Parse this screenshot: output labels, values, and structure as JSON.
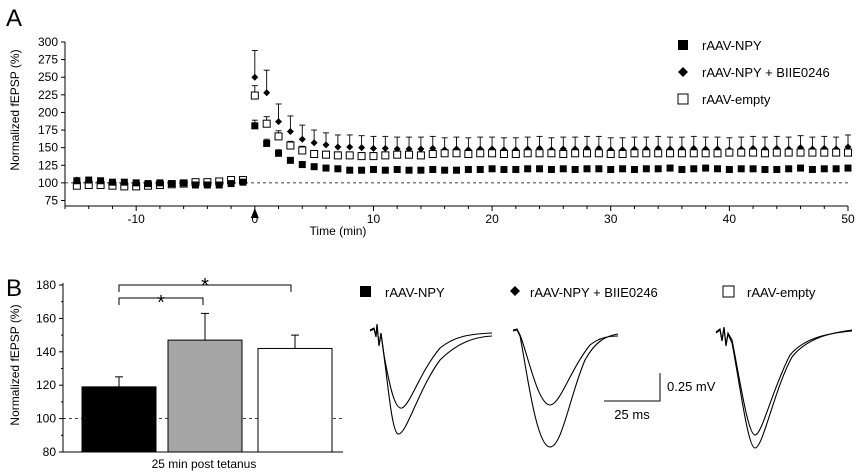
{
  "panel_a_letter": "A",
  "panel_b_letter": "B",
  "chart_data": [
    {
      "type": "scatter",
      "panel": "A",
      "xlabel": "Time (min)",
      "ylabel": "Normalized fEPSP (%)",
      "xlim": [
        -16,
        50
      ],
      "ylim": [
        70,
        300
      ],
      "x_ticks": [
        "-10",
        "0",
        "10",
        "20",
        "30",
        "40",
        "50"
      ],
      "y_ticks": [
        "75",
        "100",
        "125",
        "150",
        "175",
        "200",
        "225",
        "250",
        "275",
        "300"
      ],
      "baseline": 100,
      "tetanus_time": 0,
      "legend": [
        "rAAV-NPY",
        "rAAV-NPY + BIIE0246",
        "rAAV-empty"
      ],
      "series": [
        {
          "name": "rAAV-NPY",
          "marker": "filled-square",
          "x": [
            -15,
            -14,
            -13,
            -12,
            -11,
            -10,
            -9,
            -8,
            -7,
            -6,
            -5,
            -4,
            -3,
            -2,
            -1,
            0,
            1,
            2,
            3,
            4,
            5,
            6,
            7,
            8,
            9,
            10,
            11,
            12,
            13,
            14,
            15,
            16,
            17,
            18,
            19,
            20,
            21,
            22,
            23,
            24,
            25,
            26,
            27,
            28,
            29,
            30,
            31,
            32,
            33,
            34,
            35,
            36,
            37,
            38,
            39,
            40,
            41,
            42,
            43,
            44,
            45,
            46,
            47,
            48,
            49,
            50
          ],
          "values": [
            103,
            104,
            103,
            101,
            101,
            100,
            99,
            100,
            99,
            100,
            97,
            97,
            97,
            99,
            101,
            181,
            156,
            142,
            132,
            126,
            123,
            121,
            120,
            118,
            118,
            119,
            118,
            119,
            118,
            118,
            119,
            118,
            118,
            119,
            119,
            120,
            119,
            119,
            120,
            120,
            119,
            120,
            119,
            120,
            120,
            119,
            120,
            119,
            120,
            120,
            121,
            119,
            120,
            121,
            120,
            119,
            120,
            120,
            119,
            119,
            120,
            121,
            119,
            120,
            120,
            121
          ],
          "err": [
            3,
            3,
            3,
            2,
            2,
            2,
            2,
            2,
            2,
            2,
            2,
            2,
            2,
            2,
            2,
            8,
            6,
            5,
            4,
            4,
            3,
            3,
            3,
            3,
            3,
            3,
            3,
            3,
            3,
            3,
            3,
            3,
            3,
            3,
            3,
            3,
            3,
            3,
            3,
            3,
            3,
            3,
            3,
            3,
            3,
            3,
            3,
            3,
            3,
            3,
            3,
            3,
            3,
            3,
            3,
            3,
            3,
            3,
            3,
            3,
            3,
            3,
            3,
            3,
            3,
            3
          ]
        },
        {
          "name": "rAAV-NPY + BIIE0246",
          "marker": "diamond",
          "x": [
            -15,
            -14,
            -13,
            -12,
            -11,
            -10,
            -9,
            -8,
            -7,
            -6,
            -5,
            -4,
            -3,
            -2,
            -1,
            0,
            1,
            2,
            3,
            4,
            5,
            6,
            7,
            8,
            9,
            10,
            11,
            12,
            13,
            14,
            15,
            16,
            17,
            18,
            19,
            20,
            21,
            22,
            23,
            24,
            25,
            26,
            27,
            28,
            29,
            30,
            31,
            32,
            33,
            34,
            35,
            36,
            37,
            38,
            39,
            40,
            41,
            42,
            43,
            44,
            45,
            46,
            47,
            48,
            49,
            50
          ],
          "values": [
            104,
            103,
            100,
            100,
            99,
            99,
            98,
            99,
            98,
            98,
            97,
            97,
            97,
            99,
            101,
            250,
            228,
            187,
            173,
            162,
            157,
            154,
            151,
            151,
            150,
            149,
            149,
            148,
            148,
            148,
            149,
            147,
            148,
            147,
            148,
            148,
            147,
            147,
            148,
            149,
            147,
            148,
            148,
            149,
            149,
            147,
            147,
            148,
            148,
            149,
            148,
            148,
            149,
            148,
            148,
            147,
            148,
            149,
            148,
            149,
            148,
            150,
            148,
            149,
            148,
            151
          ],
          "err": [
            3,
            3,
            3,
            3,
            3,
            3,
            3,
            3,
            3,
            3,
            3,
            3,
            3,
            3,
            3,
            38,
            32,
            25,
            22,
            20,
            18,
            17,
            17,
            17,
            17,
            17,
            17,
            17,
            17,
            17,
            17,
            17,
            17,
            17,
            17,
            17,
            17,
            17,
            17,
            17,
            17,
            17,
            17,
            17,
            17,
            17,
            17,
            17,
            17,
            17,
            17,
            17,
            17,
            17,
            17,
            17,
            17,
            17,
            17,
            17,
            17,
            17,
            17,
            17,
            17,
            17
          ]
        },
        {
          "name": "rAAV-empty",
          "marker": "open-square",
          "x": [
            -15,
            -14,
            -13,
            -12,
            -11,
            -10,
            -9,
            -8,
            -7,
            -6,
            -5,
            -4,
            -3,
            -2,
            -1,
            0,
            1,
            2,
            3,
            4,
            5,
            6,
            7,
            8,
            9,
            10,
            11,
            12,
            13,
            14,
            15,
            16,
            17,
            18,
            19,
            20,
            21,
            22,
            23,
            24,
            25,
            26,
            27,
            28,
            29,
            30,
            31,
            32,
            33,
            34,
            35,
            36,
            37,
            38,
            39,
            40,
            41,
            42,
            43,
            44,
            45,
            46,
            47,
            48,
            49,
            50
          ],
          "values": [
            96,
            97,
            97,
            96,
            95,
            95,
            96,
            97,
            98,
            99,
            101,
            101,
            102,
            104,
            104,
            224,
            184,
            166,
            153,
            146,
            141,
            140,
            139,
            139,
            138,
            138,
            139,
            140,
            140,
            139,
            141,
            142,
            142,
            141,
            142,
            142,
            141,
            141,
            142,
            142,
            142,
            141,
            142,
            142,
            142,
            141,
            141,
            142,
            142,
            142,
            142,
            142,
            142,
            142,
            142,
            143,
            143,
            143,
            142,
            143,
            143,
            143,
            143,
            143,
            143,
            143
          ],
          "err": [
            3,
            3,
            3,
            3,
            3,
            3,
            3,
            3,
            3,
            3,
            3,
            3,
            3,
            3,
            3,
            14,
            10,
            8,
            6,
            6,
            5,
            5,
            5,
            5,
            5,
            5,
            5,
            5,
            5,
            5,
            5,
            5,
            5,
            5,
            5,
            5,
            5,
            5,
            5,
            5,
            5,
            5,
            5,
            5,
            5,
            5,
            5,
            5,
            5,
            5,
            5,
            5,
            5,
            5,
            5,
            5,
            5,
            5,
            5,
            5,
            5,
            5,
            5,
            5,
            5,
            5
          ]
        }
      ]
    },
    {
      "type": "bar",
      "panel": "B",
      "xlabel": "25 min post tetanus",
      "ylabel": "Normalized fEPSP (%)",
      "ylim": [
        80,
        180
      ],
      "y_ticks": [
        "80",
        "100",
        "120",
        "140",
        "160",
        "180"
      ],
      "baseline": 100,
      "categories": [
        "rAAV-NPY",
        "rAAV-NPY + BIIE0246",
        "rAAV-empty"
      ],
      "values": [
        119,
        147,
        142
      ],
      "errors": [
        6,
        16,
        8
      ],
      "colors": [
        "#000000",
        "#a6a6a6",
        "#ffffff"
      ],
      "significance": [
        "*",
        "*"
      ]
    }
  ],
  "traces": {
    "legend": [
      "rAAV-NPY",
      "rAAV-NPY + BIIE0246",
      "rAAV-empty"
    ],
    "scale_voltage": "0.25 mV",
    "scale_time": "25 ms"
  }
}
